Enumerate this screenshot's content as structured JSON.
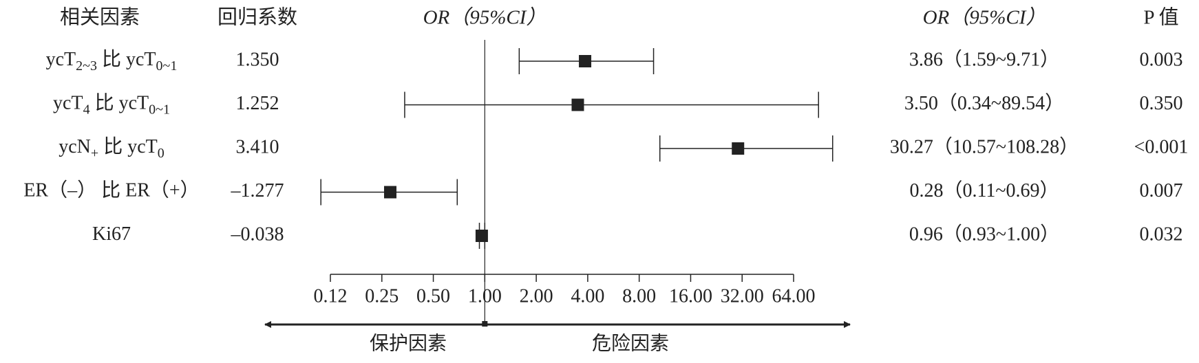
{
  "chart_data": {
    "type": "forest",
    "headers": {
      "factor": "相关因素",
      "coef": "回归系数",
      "plot": "OR（95%CI）",
      "ci": "OR（95%CI）",
      "p": "P 值"
    },
    "rows": [
      {
        "label": [
          {
            "text": "ycT"
          },
          {
            "text": "2~3",
            "baseline": "sub"
          },
          {
            "text": " 比 ycT"
          },
          {
            "text": "0~1",
            "baseline": "sub"
          }
        ],
        "coef": "1.350",
        "or": 3.86,
        "lo": 1.59,
        "hi": 9.71,
        "ci_label": "3.86（1.59~9.71）",
        "p": "0.003"
      },
      {
        "label": [
          {
            "text": "ycT"
          },
          {
            "text": "4",
            "baseline": "sub"
          },
          {
            "text": " 比 ycT"
          },
          {
            "text": "0~1",
            "baseline": "sub"
          }
        ],
        "coef": "1.252",
        "or": 3.5,
        "lo": 0.34,
        "hi": 89.54,
        "ci_label": "3.50（0.34~89.54）",
        "p": "0.350"
      },
      {
        "label": [
          {
            "text": "ycN"
          },
          {
            "text": "+",
            "baseline": "sub"
          },
          {
            "text": " 比 ycT"
          },
          {
            "text": "0",
            "baseline": "sub"
          }
        ],
        "coef": "3.410",
        "or": 30.27,
        "lo": 10.57,
        "hi": 108.28,
        "ci_label": "30.27（10.57~108.28）",
        "p": "<0.001"
      },
      {
        "label": [
          {
            "text": "ER（–） 比 ER（+）"
          }
        ],
        "coef": "–1.277",
        "or": 0.28,
        "lo": 0.11,
        "hi": 0.69,
        "ci_label": "0.28（0.11~0.69）",
        "p": "0.007"
      },
      {
        "label": [
          {
            "text": "Ki67"
          }
        ],
        "coef": "–0.038",
        "or": 0.96,
        "lo": 0.93,
        "hi": 1.0,
        "ci_label": "0.96（0.93~1.00）",
        "p": "0.032"
      }
    ],
    "log_scale": true,
    "xlim": [
      0.125,
      64
    ],
    "xticks": [
      {
        "value": 0.125,
        "label": "0.12"
      },
      {
        "value": 0.25,
        "label": "0.25"
      },
      {
        "value": 0.5,
        "label": "0.50"
      },
      {
        "value": 1,
        "label": "1.00"
      },
      {
        "value": 2,
        "label": "2.00"
      },
      {
        "value": 4,
        "label": "4.00"
      },
      {
        "value": 8,
        "label": "8.00"
      },
      {
        "value": 16,
        "label": "16.00"
      },
      {
        "value": 32,
        "label": "32.00"
      },
      {
        "value": 64,
        "label": "64.00"
      }
    ],
    "reference": 1,
    "left_label": "保护因素",
    "right_label": "危险因素",
    "color": "#222222"
  }
}
